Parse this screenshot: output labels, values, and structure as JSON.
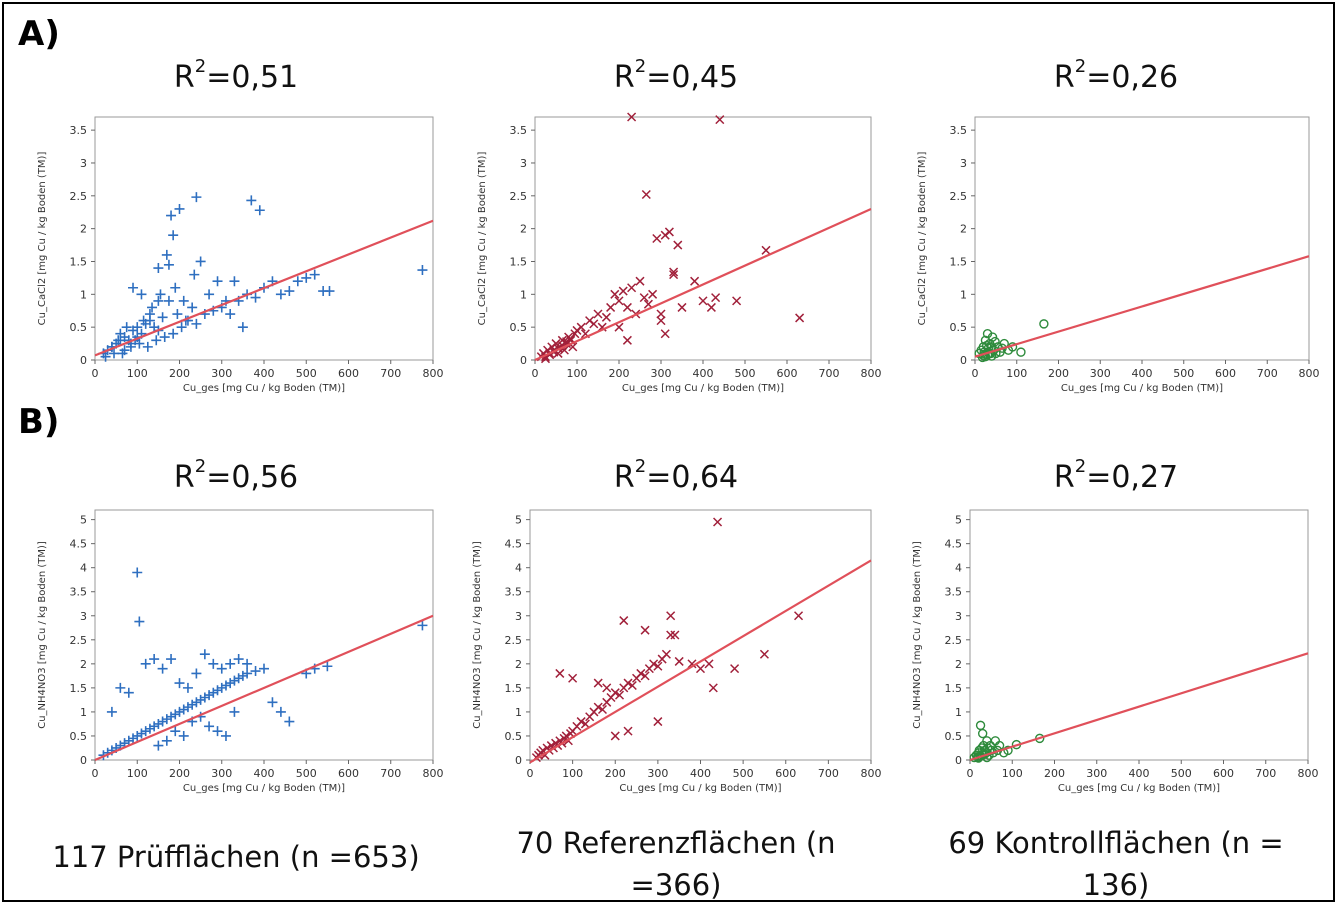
{
  "row_labels": {
    "a": "A)",
    "b": "B)"
  },
  "captions": [
    "117 Prüfflächen (n =653)",
    "70 Referenzflächen (n =366)",
    "69 Kontrollflächen (n = 136)"
  ],
  "colors": {
    "prueff": "#2e6fc0",
    "referenz": "#a1203a",
    "kontroll": "#2e8b3c",
    "fit": "#e0505a"
  },
  "chart_data": [
    {
      "type": "scatter",
      "title": "R2=0,51",
      "r2_value": "0,51",
      "marker": "plus",
      "color": "#2e6fc0",
      "xlabel": "Cu_ges [mg Cu / kg Boden (TM)]",
      "ylabel": "Cu_CaCl2 [mg Cu / kg Boden (TM)]",
      "xlim": [
        0,
        800
      ],
      "ylim": [
        0,
        3.7
      ],
      "xticks": [
        0,
        100,
        200,
        300,
        400,
        500,
        600,
        700,
        800
      ],
      "yticks": [
        0,
        0.5,
        1,
        1.5,
        2,
        2.5,
        3,
        3.5
      ],
      "yticklabels": [
        "0",
        "0.5",
        "1",
        "1.5",
        "2",
        "2.5",
        "3",
        "3.5"
      ],
      "fit": {
        "x": [
          0,
          800
        ],
        "y": [
          0.07,
          2.12
        ]
      },
      "points": {
        "x": [
          20,
          30,
          40,
          50,
          60,
          70,
          80,
          90,
          100,
          110,
          120,
          130,
          140,
          150,
          160,
          25,
          45,
          65,
          85,
          105,
          125,
          145,
          165,
          185,
          205,
          220,
          240,
          260,
          280,
          300,
          320,
          340,
          360,
          380,
          400,
          420,
          440,
          460,
          480,
          500,
          520,
          540,
          555,
          775,
          180,
          185,
          200,
          240,
          370,
          390,
          150,
          170,
          190,
          210,
          230,
          250,
          270,
          290,
          310,
          330,
          350,
          90,
          110,
          130,
          150,
          175,
          195,
          215,
          235,
          60,
          75,
          95,
          115,
          135,
          155,
          175,
          40,
          55,
          70,
          85,
          100
        ],
        "y": [
          0.1,
          0.15,
          0.2,
          0.25,
          0.3,
          0.35,
          0.3,
          0.45,
          0.5,
          0.4,
          0.55,
          0.6,
          0.5,
          0.45,
          0.65,
          0.05,
          0.1,
          0.1,
          0.2,
          0.25,
          0.2,
          0.3,
          0.35,
          0.4,
          0.5,
          0.6,
          0.55,
          0.7,
          0.75,
          0.8,
          0.7,
          0.9,
          1.0,
          0.95,
          1.1,
          1.2,
          1.0,
          1.05,
          1.2,
          1.25,
          1.3,
          1.05,
          1.05,
          1.37,
          2.2,
          1.9,
          2.3,
          2.48,
          2.43,
          2.28,
          1.4,
          1.6,
          1.1,
          0.9,
          0.8,
          1.5,
          1.0,
          1.2,
          0.9,
          1.2,
          0.5,
          1.1,
          1.0,
          0.7,
          0.9,
          1.45,
          0.7,
          0.6,
          1.3,
          0.4,
          0.5,
          0.3,
          0.6,
          0.8,
          1.0,
          0.9,
          0.2,
          0.3,
          0.15,
          0.25,
          0.35
        ]
      }
    },
    {
      "type": "scatter",
      "title": "R2=0,45",
      "r2_value": "0,45",
      "marker": "cross",
      "color": "#a1203a",
      "xlabel": "Cu_ges [mg Cu / kg Boden (TM)]",
      "ylabel": "Cu_CaCl2 [mg Cu / kg Boden (TM)]",
      "xlim": [
        0,
        800
      ],
      "ylim": [
        0,
        3.7
      ],
      "xticks": [
        0,
        100,
        200,
        300,
        400,
        500,
        600,
        700,
        800
      ],
      "yticks": [
        0,
        0.5,
        1,
        1.5,
        2,
        2.5,
        3,
        3.5
      ],
      "yticklabels": [
        "0",
        "0.5",
        "1",
        "1.5",
        "2",
        "2.5",
        "3",
        "3.5"
      ],
      "fit": {
        "x": [
          0,
          800
        ],
        "y": [
          0.0,
          2.3
        ]
      },
      "points": {
        "x": [
          15,
          20,
          25,
          30,
          35,
          40,
          45,
          50,
          55,
          60,
          65,
          70,
          75,
          80,
          85,
          90,
          95,
          100,
          110,
          120,
          130,
          140,
          150,
          160,
          170,
          180,
          190,
          200,
          210,
          220,
          230,
          240,
          250,
          260,
          270,
          280,
          290,
          300,
          310,
          320,
          330,
          340,
          350,
          380,
          400,
          420,
          430,
          440,
          480,
          550,
          630,
          230,
          265,
          330,
          200,
          220,
          300,
          310,
          25,
          35,
          45,
          55,
          65,
          75,
          85
        ],
        "y": [
          0.05,
          0.1,
          0.05,
          0.15,
          0.1,
          0.2,
          0.15,
          0.25,
          0.1,
          0.2,
          0.3,
          0.15,
          0.25,
          0.35,
          0.3,
          0.2,
          0.4,
          0.45,
          0.5,
          0.4,
          0.6,
          0.55,
          0.7,
          0.5,
          0.65,
          0.8,
          1.0,
          0.9,
          1.05,
          0.8,
          1.1,
          0.7,
          1.2,
          0.95,
          0.85,
          1.0,
          1.85,
          0.7,
          1.9,
          1.95,
          1.3,
          1.75,
          0.8,
          1.2,
          0.9,
          0.8,
          0.95,
          3.66,
          0.9,
          1.67,
          0.64,
          3.7,
          2.52,
          1.34,
          0.5,
          0.3,
          0.6,
          0.4,
          0.02,
          0.08,
          0.12,
          0.18,
          0.22,
          0.28,
          0.32
        ]
      }
    },
    {
      "type": "scatter",
      "title": "R2=0,26",
      "r2_value": "0,26",
      "marker": "circle",
      "color": "#2e8b3c",
      "xlabel": "Cu_ges [mg Cu / kg Boden (TM)]",
      "ylabel": "Cu_CaCl2 [mg Cu / kg Boden (TM)]",
      "xlim": [
        0,
        800
      ],
      "ylim": [
        0,
        3.7
      ],
      "xticks": [
        0,
        100,
        200,
        300,
        400,
        500,
        600,
        700,
        800
      ],
      "yticks": [
        0,
        0.5,
        1,
        1.5,
        2,
        2.5,
        3,
        3.5
      ],
      "yticklabels": [
        "0",
        "0.5",
        "1",
        "1.5",
        "2",
        "2.5",
        "3",
        "3.5"
      ],
      "fit": {
        "x": [
          0,
          800
        ],
        "y": [
          0.05,
          1.58
        ]
      },
      "points": {
        "x": [
          10,
          15,
          20,
          22,
          25,
          28,
          30,
          32,
          35,
          38,
          40,
          42,
          45,
          48,
          50,
          55,
          60,
          65,
          70,
          80,
          90,
          110,
          165,
          25,
          30,
          35,
          40,
          18,
          20,
          24
        ],
        "y": [
          0.1,
          0.15,
          0.2,
          0.12,
          0.3,
          0.22,
          0.4,
          0.18,
          0.25,
          0.1,
          0.2,
          0.35,
          0.15,
          0.28,
          0.1,
          0.2,
          0.12,
          0.18,
          0.25,
          0.15,
          0.2,
          0.12,
          0.55,
          0.05,
          0.08,
          0.1,
          0.06,
          0.04,
          0.07,
          0.09
        ]
      }
    },
    {
      "type": "scatter",
      "title": "R2=0,56",
      "r2_value": "0,56",
      "marker": "plus",
      "color": "#2e6fc0",
      "xlabel": "Cu_ges [mg Cu / kg Boden (TM)]",
      "ylabel": "Cu_NH4NO3 [mg Cu / kg Boden (TM)]",
      "xlim": [
        0,
        800
      ],
      "ylim": [
        0,
        5.2
      ],
      "xticks": [
        0,
        100,
        200,
        300,
        400,
        500,
        600,
        700,
        800
      ],
      "yticks": [
        0,
        0.5,
        1,
        1.5,
        2,
        2.5,
        3,
        3.5,
        4,
        4.5,
        5
      ],
      "yticklabels": [
        "0",
        "0.5",
        "1",
        "1.5",
        "2",
        "2.5",
        "3",
        "3.5",
        "4",
        "4.5",
        "5"
      ],
      "fit": {
        "x": [
          0,
          800
        ],
        "y": [
          0.0,
          3.0
        ]
      },
      "points": {
        "x": [
          20,
          30,
          40,
          50,
          60,
          70,
          80,
          90,
          100,
          110,
          120,
          130,
          140,
          150,
          160,
          170,
          180,
          190,
          200,
          210,
          220,
          230,
          240,
          250,
          260,
          270,
          280,
          290,
          300,
          310,
          320,
          330,
          340,
          350,
          360,
          380,
          400,
          420,
          440,
          460,
          500,
          520,
          550,
          775,
          100,
          105,
          40,
          60,
          80,
          120,
          140,
          160,
          180,
          200,
          220,
          240,
          260,
          280,
          300,
          320,
          340,
          360,
          150,
          170,
          190,
          210,
          230,
          250,
          270,
          290,
          310,
          330
        ],
        "y": [
          0.1,
          0.15,
          0.2,
          0.25,
          0.3,
          0.35,
          0.4,
          0.45,
          0.5,
          0.55,
          0.6,
          0.65,
          0.7,
          0.75,
          0.8,
          0.85,
          0.9,
          0.95,
          1.0,
          1.05,
          1.1,
          1.15,
          1.2,
          1.25,
          1.3,
          1.35,
          1.4,
          1.45,
          1.5,
          1.55,
          1.6,
          1.65,
          1.7,
          1.75,
          1.8,
          1.85,
          1.9,
          1.2,
          1.0,
          0.8,
          1.8,
          1.9,
          1.95,
          2.8,
          3.9,
          2.88,
          1.0,
          1.5,
          1.4,
          2.0,
          2.1,
          1.9,
          2.1,
          1.6,
          1.5,
          1.8,
          2.2,
          2.0,
          1.9,
          2.0,
          2.1,
          2.0,
          0.3,
          0.4,
          0.6,
          0.5,
          0.8,
          0.9,
          0.7,
          0.6,
          0.5,
          1.0
        ]
      }
    },
    {
      "type": "scatter",
      "title": "R2=0,64",
      "r2_value": "0,64",
      "marker": "cross",
      "color": "#a1203a",
      "xlabel": "Cu_ges [mg Cu / kg Boden (TM)]",
      "ylabel": "Cu_NH4NO3 [mg Cu / kg Boden (TM)]",
      "xlim": [
        0,
        800
      ],
      "ylim": [
        0,
        5.2
      ],
      "xticks": [
        0,
        100,
        200,
        300,
        400,
        500,
        600,
        700,
        800
      ],
      "yticks": [
        0,
        0.5,
        1,
        1.5,
        2,
        2.5,
        3,
        3.5,
        4,
        4.5,
        5
      ],
      "yticklabels": [
        "0",
        "0.5",
        "1",
        "1.5",
        "2",
        "2.5",
        "3",
        "3.5",
        "4",
        "4.5",
        "5"
      ],
      "fit": {
        "x": [
          0,
          800
        ],
        "y": [
          -0.05,
          4.15
        ]
      },
      "points": {
        "x": [
          15,
          20,
          25,
          30,
          35,
          40,
          45,
          50,
          55,
          60,
          65,
          70,
          75,
          80,
          85,
          90,
          95,
          100,
          110,
          120,
          130,
          140,
          150,
          160,
          170,
          180,
          190,
          200,
          210,
          220,
          230,
          240,
          250,
          260,
          270,
          280,
          290,
          300,
          310,
          320,
          330,
          340,
          350,
          380,
          400,
          420,
          430,
          440,
          480,
          550,
          630,
          70,
          100,
          160,
          180,
          220,
          270,
          330,
          200,
          230,
          300
        ],
        "y": [
          0.05,
          0.1,
          0.15,
          0.2,
          0.1,
          0.25,
          0.2,
          0.3,
          0.25,
          0.35,
          0.3,
          0.4,
          0.35,
          0.45,
          0.5,
          0.4,
          0.55,
          0.6,
          0.7,
          0.8,
          0.75,
          0.9,
          1.0,
          1.1,
          1.05,
          1.2,
          1.3,
          1.4,
          1.35,
          1.5,
          1.6,
          1.55,
          1.7,
          1.8,
          1.75,
          1.9,
          2.0,
          1.95,
          2.1,
          2.2,
          3.0,
          2.6,
          2.05,
          2.0,
          1.9,
          2.0,
          1.5,
          4.95,
          1.9,
          2.2,
          3.0,
          1.8,
          1.7,
          1.6,
          1.5,
          2.9,
          2.7,
          2.6,
          0.5,
          0.6,
          0.8
        ]
      }
    },
    {
      "type": "scatter",
      "title": "R2=0,27",
      "r2_value": "0,27",
      "marker": "circle",
      "color": "#2e8b3c",
      "xlabel": "Cu_ges [mg Cu / kg Boden (TM)]",
      "ylabel": "Cu_NH4NO3 [mg Cu / kg Boden (TM)]",
      "xlim": [
        0,
        800
      ],
      "ylim": [
        0,
        5.2
      ],
      "xticks": [
        0,
        100,
        200,
        300,
        400,
        500,
        600,
        700,
        800
      ],
      "yticks": [
        0,
        0.5,
        1,
        1.5,
        2,
        2.5,
        3,
        3.5,
        4,
        4.5,
        5
      ],
      "yticklabels": [
        "0",
        "0.5",
        "1",
        "1.5",
        "2",
        "2.5",
        "3",
        "3.5",
        "4",
        "4.5",
        "5"
      ],
      "fit": {
        "x": [
          0,
          800
        ],
        "y": [
          0.0,
          2.22
        ]
      },
      "points": {
        "x": [
          10,
          15,
          20,
          22,
          25,
          28,
          30,
          32,
          35,
          38,
          40,
          42,
          45,
          48,
          50,
          55,
          60,
          65,
          70,
          80,
          90,
          110,
          165,
          25,
          30,
          35,
          40,
          18,
          20,
          24
        ],
        "y": [
          0.05,
          0.1,
          0.15,
          0.2,
          0.72,
          0.25,
          0.55,
          0.3,
          0.2,
          0.15,
          0.4,
          0.25,
          0.1,
          0.3,
          0.2,
          0.15,
          0.4,
          0.2,
          0.3,
          0.15,
          0.2,
          0.32,
          0.45,
          0.08,
          0.1,
          0.12,
          0.05,
          0.06,
          0.04,
          0.09
        ]
      }
    }
  ]
}
